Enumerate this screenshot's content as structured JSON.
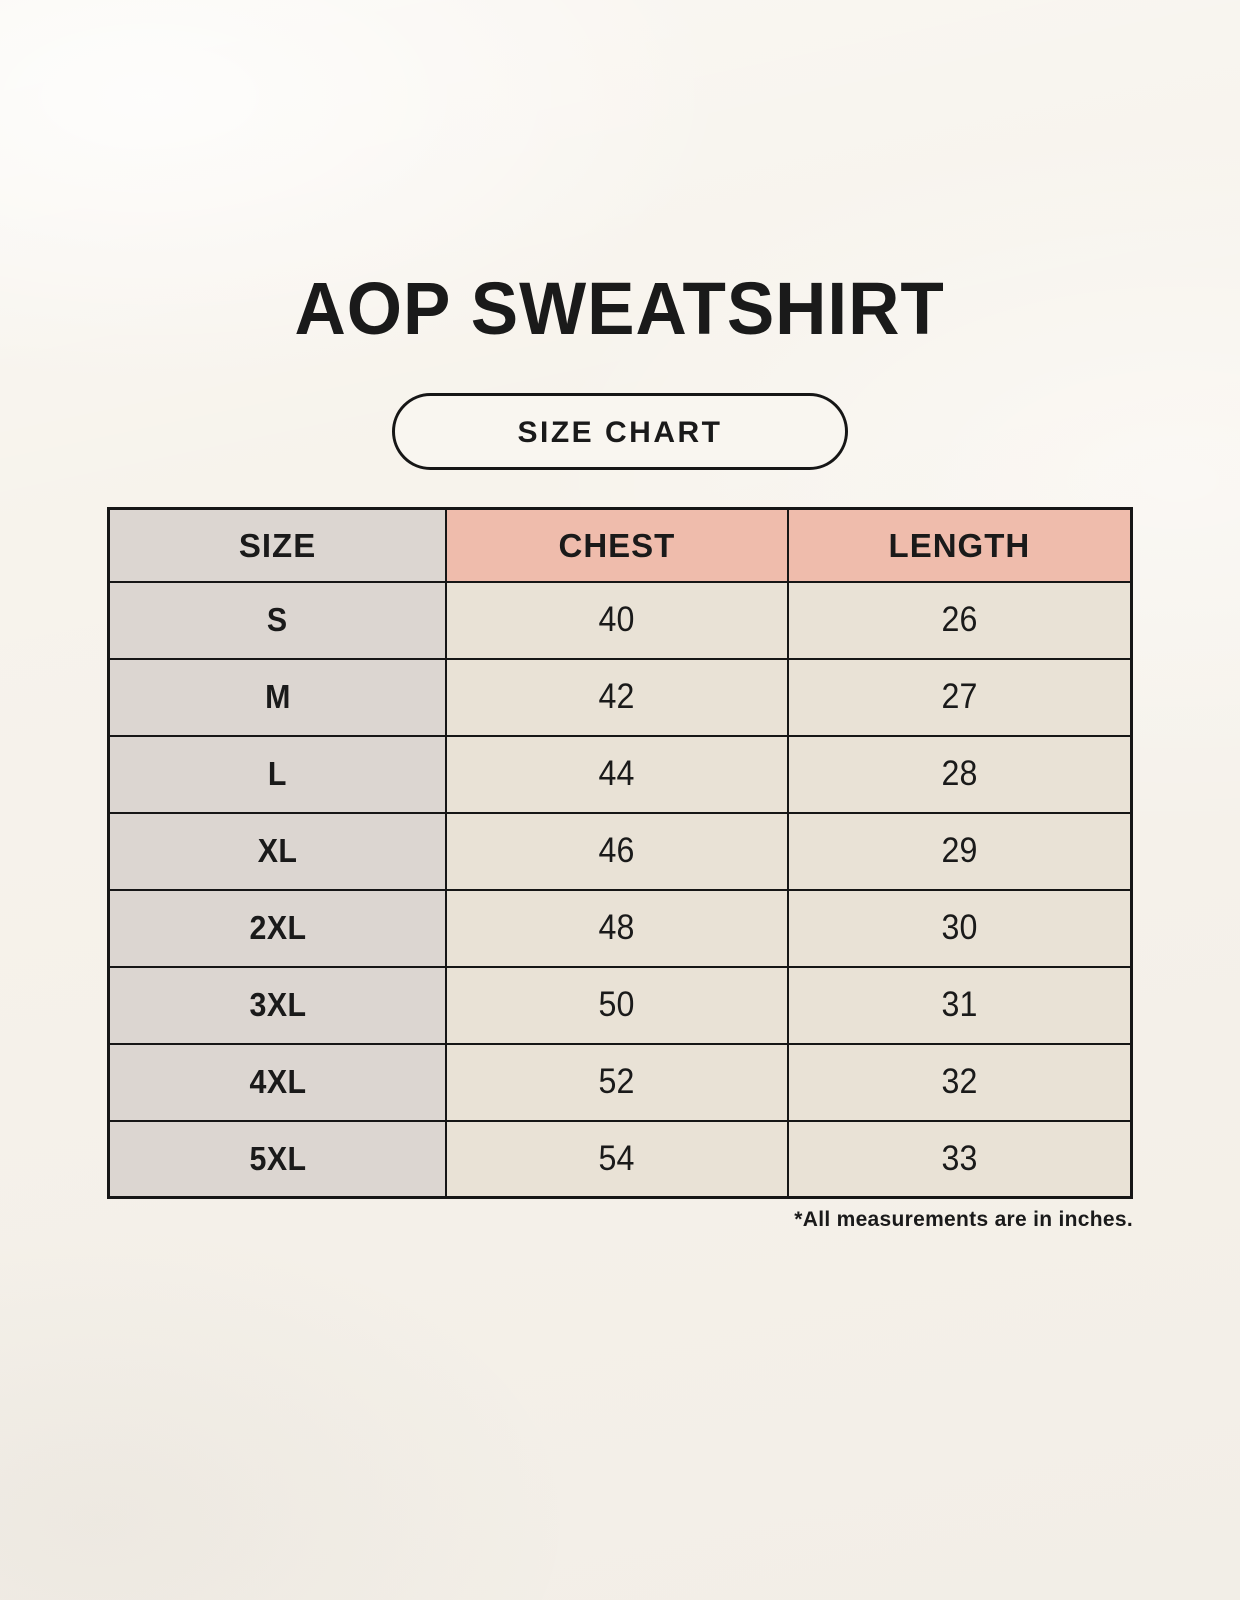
{
  "chart_data": {
    "type": "table",
    "title": "AOP SWEATSHIRT",
    "subtitle": "SIZE CHART",
    "columns": [
      "SIZE",
      "CHEST",
      "LENGTH"
    ],
    "rows": [
      [
        "S",
        "40",
        "26"
      ],
      [
        "M",
        "42",
        "27"
      ],
      [
        "L",
        "44",
        "28"
      ],
      [
        "XL",
        "46",
        "29"
      ],
      [
        "2XL",
        "48",
        "30"
      ],
      [
        "3XL",
        "50",
        "31"
      ],
      [
        "4XL",
        "52",
        "32"
      ],
      [
        "5XL",
        "54",
        "33"
      ]
    ],
    "note": "*All measurements are in inches.",
    "units": "inches"
  },
  "colors": {
    "background": "#F7F3EC",
    "size_column": "#DCD6D1",
    "header_accent": "#EFBCAC",
    "value_cell": "#E9E2D6",
    "border": "#161616",
    "text": "#1A1A1A"
  }
}
